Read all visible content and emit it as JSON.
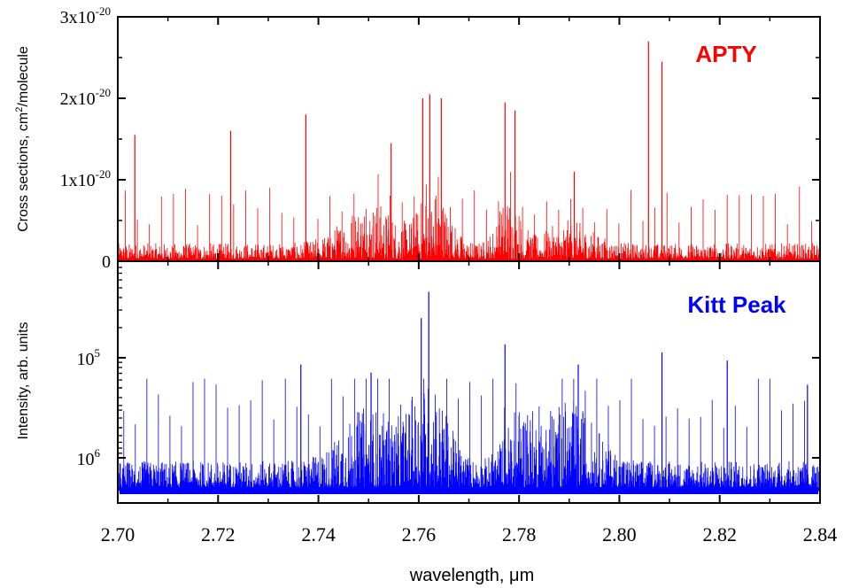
{
  "chart_data": [
    {
      "type": "line",
      "panel": "top",
      "ylabel_main": "Cross sections, cm",
      "ylabel_sup": "2",
      "ylabel_tail": "/molecule",
      "label": "APTY",
      "label_color": "#ff0000",
      "series_color": "#ff0000",
      "xlim": [
        2.7,
        2.84
      ],
      "ylim": [
        0,
        3e-20
      ],
      "yticks": [
        {
          "value": 0,
          "mant": "0",
          "exp": ""
        },
        {
          "value": 1e-20,
          "mant": "1x10",
          "exp": "-20"
        },
        {
          "value": 2e-20,
          "mant": "2x10",
          "exp": "-20"
        },
        {
          "value": 3e-20,
          "mant": "3x10",
          "exp": "-20"
        }
      ],
      "strong_peaks": [
        {
          "x": 2.7034,
          "y": 1.55e-20
        },
        {
          "x": 2.7225,
          "y": 1.6e-20
        },
        {
          "x": 2.7375,
          "y": 1.8e-20
        },
        {
          "x": 2.7545,
          "y": 1.45e-20
        },
        {
          "x": 2.7608,
          "y": 2e-20
        },
        {
          "x": 2.7622,
          "y": 2.05e-20
        },
        {
          "x": 2.7645,
          "y": 2e-20
        },
        {
          "x": 2.7772,
          "y": 1.95e-20
        },
        {
          "x": 2.7792,
          "y": 1.85e-20
        },
        {
          "x": 2.8058,
          "y": 2.7e-20
        },
        {
          "x": 2.8085,
          "y": 2.45e-20
        },
        {
          "x": 2.791,
          "y": 1.1e-20
        }
      ]
    },
    {
      "type": "line",
      "panel": "bottom",
      "ylabel": "Intensity, arb. units",
      "label": "Kitt Peak",
      "label_color": "#0000ff",
      "series_color": "#0000ff",
      "xlim": [
        2.7,
        2.84
      ],
      "yticks": [
        {
          "mant": "10",
          "exp": "5"
        },
        {
          "mant": "10",
          "exp": "6"
        }
      ],
      "strong_peaks": [
        {
          "x": 2.762,
          "y": 0.98
        },
        {
          "x": 2.7605,
          "y": 0.85
        },
        {
          "x": 2.7772,
          "y": 0.72
        },
        {
          "x": 2.7365,
          "y": 0.62
        },
        {
          "x": 2.8085,
          "y": 0.68
        },
        {
          "x": 2.8215,
          "y": 0.64
        },
        {
          "x": 2.8375,
          "y": 0.52
        },
        {
          "x": 2.7918,
          "y": 0.62
        },
        {
          "x": 2.7505,
          "y": 0.58
        }
      ]
    }
  ],
  "xaxis": {
    "label": "wavelength, μm",
    "ticks": [
      "2.70",
      "2.72",
      "2.74",
      "2.76",
      "2.78",
      "2.80",
      "2.82",
      "2.84"
    ]
  }
}
